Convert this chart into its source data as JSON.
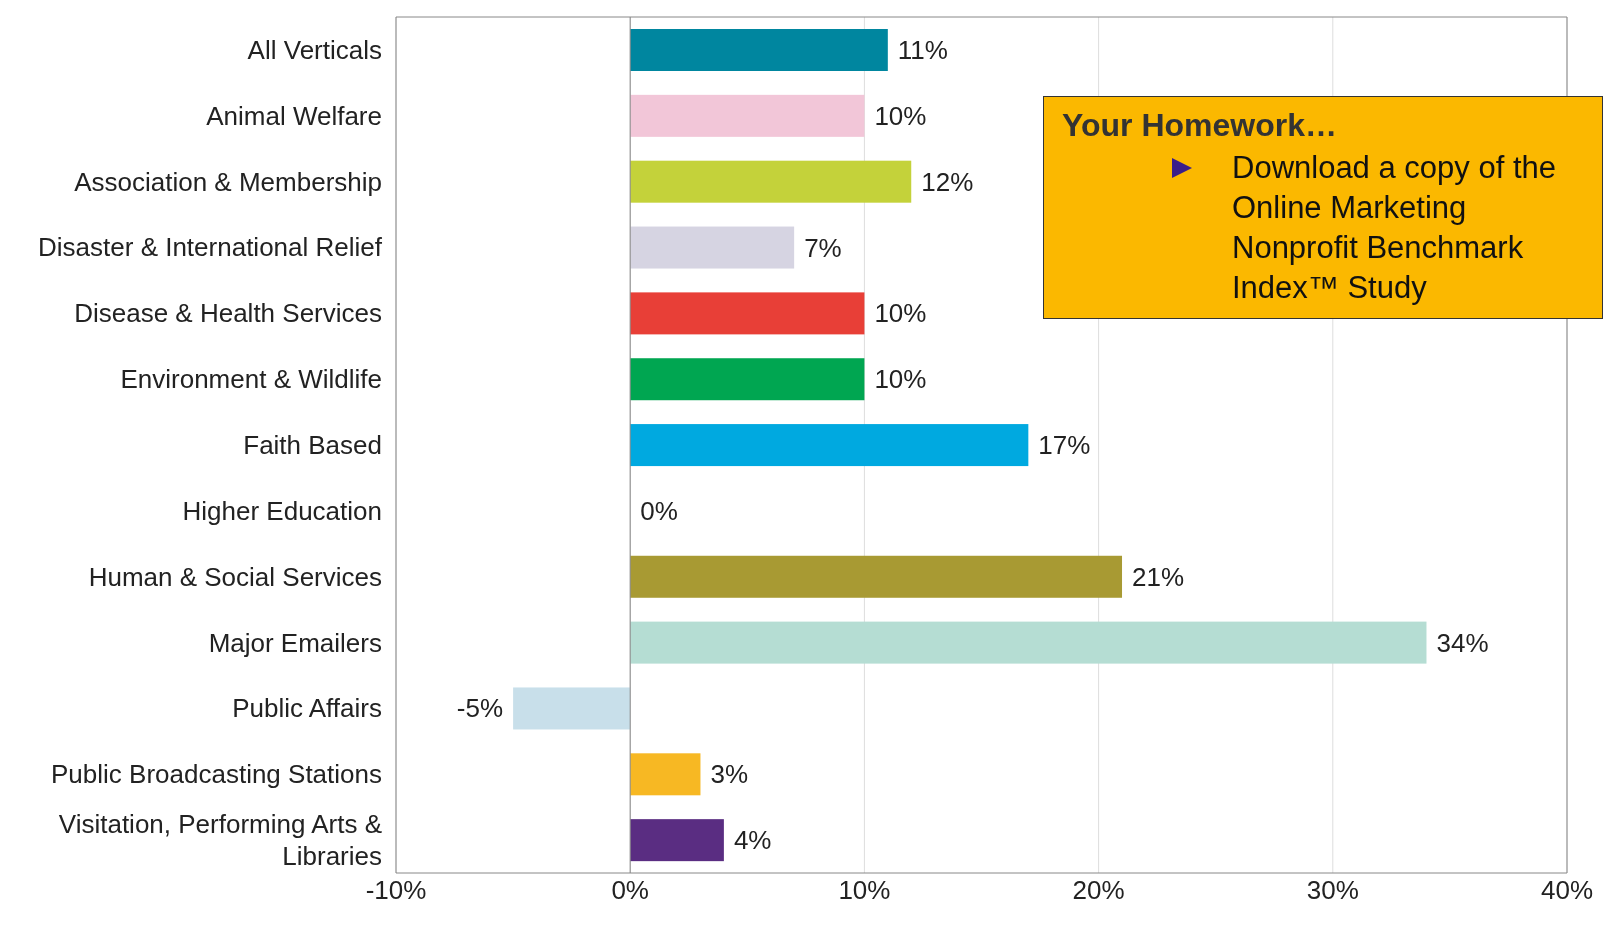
{
  "chart_data": {
    "type": "bar",
    "orientation": "horizontal",
    "categories": [
      "All Verticals",
      "Animal Welfare",
      "Association & Membership",
      "Disaster & International Relief",
      "Disease & Health Services",
      "Environment & Wildlife",
      "Faith Based",
      "Higher Education",
      "Human & Social Services",
      "Major Emailers",
      "Public Affairs",
      "Public Broadcasting Stations",
      "Visitation, Performing Arts & Libraries"
    ],
    "values": [
      11,
      10,
      12,
      7,
      10,
      10,
      17,
      0,
      21,
      34,
      -5,
      3,
      4
    ],
    "colors": [
      "#00869f",
      "#f2c6d8",
      "#c4d23a",
      "#d6d4e2",
      "#e83f37",
      "#00a651",
      "#00a9e0",
      "#cccccc",
      "#a89a33",
      "#b5ddd3",
      "#c8dfea",
      "#f7b823",
      "#5a2d82"
    ],
    "value_labels": [
      "11%",
      "10%",
      "12%",
      "7%",
      "10%",
      "10%",
      "17%",
      "0%",
      "21%",
      "34%",
      "-5%",
      "3%",
      "4%"
    ],
    "xlim": [
      -10,
      40
    ],
    "xticks": [
      {
        "value": -10,
        "label": "-10%"
      },
      {
        "value": 0,
        "label": "0%"
      },
      {
        "value": 10,
        "label": "10%"
      },
      {
        "value": 20,
        "label": "20%"
      },
      {
        "value": 30,
        "label": "30%"
      },
      {
        "value": 40,
        "label": "40%"
      }
    ],
    "grid": "x",
    "annotations": [
      "Your Homework…",
      "Download a copy of the Online Marketing Nonprofit Benchmark Index™ Study"
    ]
  }
}
